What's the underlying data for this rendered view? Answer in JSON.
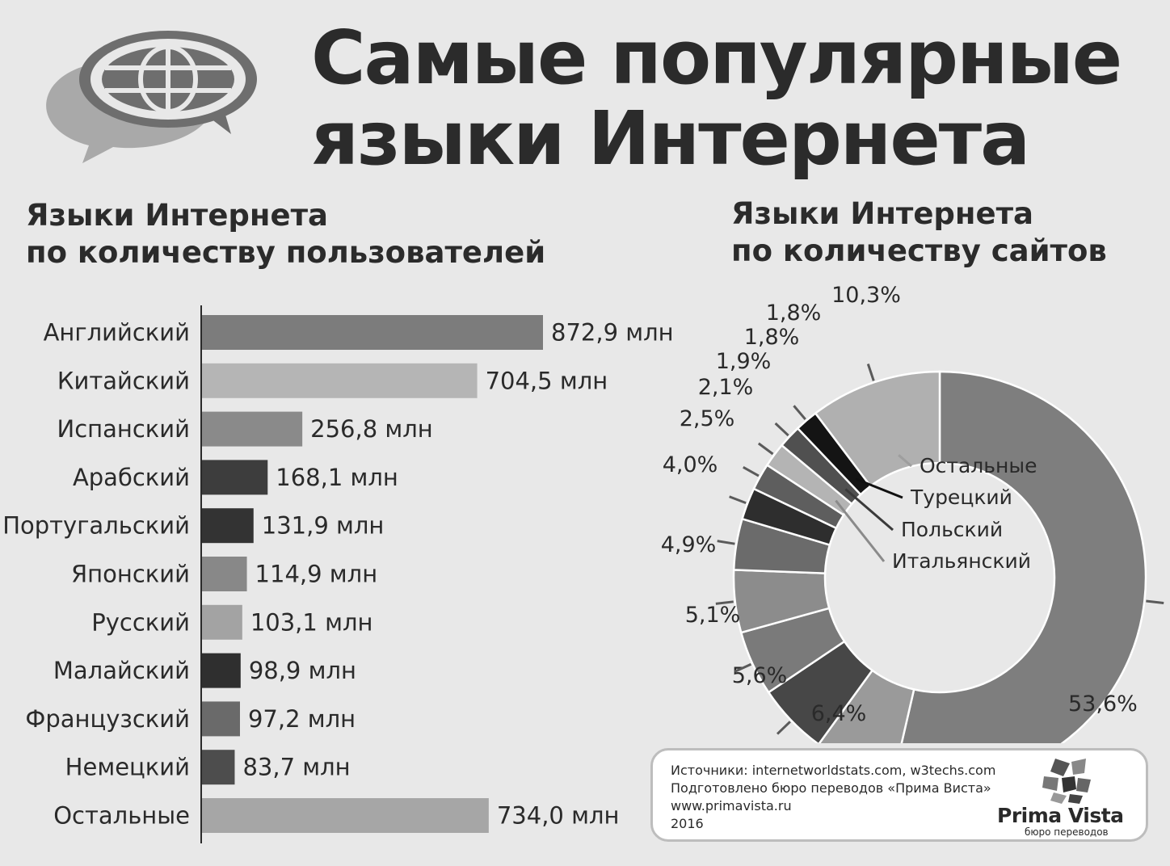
{
  "header": {
    "title": "Самые популярные\nязыки Интернета",
    "icon": "speech-bubbles-globe-icon"
  },
  "chart_data": [
    {
      "type": "bar",
      "orientation": "horizontal",
      "title": "Языки Интернета\nпо количеству пользователей",
      "categories": [
        "Английский",
        "Китайский",
        "Испанский",
        "Арабский",
        "Португальский",
        "Японский",
        "Русский",
        "Малайский",
        "Французский",
        "Немецкий",
        "Остальные"
      ],
      "values": [
        872.9,
        704.5,
        256.8,
        168.1,
        131.9,
        114.9,
        103.1,
        98.9,
        97.2,
        83.7,
        734.0
      ],
      "value_labels": [
        "872,9 млн",
        "704,5 млн",
        "256,8 млн",
        "168,1 млн",
        "131,9 млн",
        "114,9 млн",
        "103,1 млн",
        "98,9 млн",
        "97,2 млн",
        "83,7 млн",
        "734,0 млн"
      ],
      "colors": [
        "#7c7c7c",
        "#b5b5b5",
        "#8a8a8a",
        "#3d3d3d",
        "#333333",
        "#888888",
        "#a3a3a3",
        "#2f2f2f",
        "#6a6a6a",
        "#4d4d4d",
        "#a6a6a6"
      ],
      "xlim": [
        0,
        872.9
      ]
    },
    {
      "type": "pie",
      "style": "donut",
      "title": "Языки Интернета\nпо количеству сайтов",
      "values": [
        53.6,
        6.4,
        5.6,
        5.1,
        4.9,
        4.0,
        2.5,
        2.1,
        1.9,
        1.8,
        1.8,
        10.3
      ],
      "value_labels": [
        "53,6%",
        "6,4%",
        "5,6%",
        "5,1%",
        "4,9%",
        "4,0%",
        "2,5%",
        "2,1%",
        "1,9%",
        "1,8%",
        "1,8%",
        "10,3%"
      ],
      "colors": [
        "#7e7e7e",
        "#9a9a9a",
        "#474747",
        "#7a7a7a",
        "#8c8c8c",
        "#6b6b6b",
        "#2e2e2e",
        "#5e5e5e",
        "#b4b4b4",
        "#505050",
        "#141414",
        "#b0b0b0"
      ],
      "legend": [
        {
          "label": "Остальные",
          "slice": 11
        },
        {
          "label": "Турецкий",
          "slice": 10
        },
        {
          "label": "Польский",
          "slice": 9
        },
        {
          "label": "Итальянский",
          "slice": 8
        }
      ]
    }
  ],
  "source": {
    "lines": [
      "Источники: internetworldstats.com, w3techs.com",
      "Подготовлено бюро переводов «Прима Виста»",
      "www.primavista.ru",
      "2016"
    ],
    "brand_name": "Prima Vista",
    "brand_tagline": "бюро переводов",
    "brand_icon": "prima-vista-logo-icon"
  }
}
